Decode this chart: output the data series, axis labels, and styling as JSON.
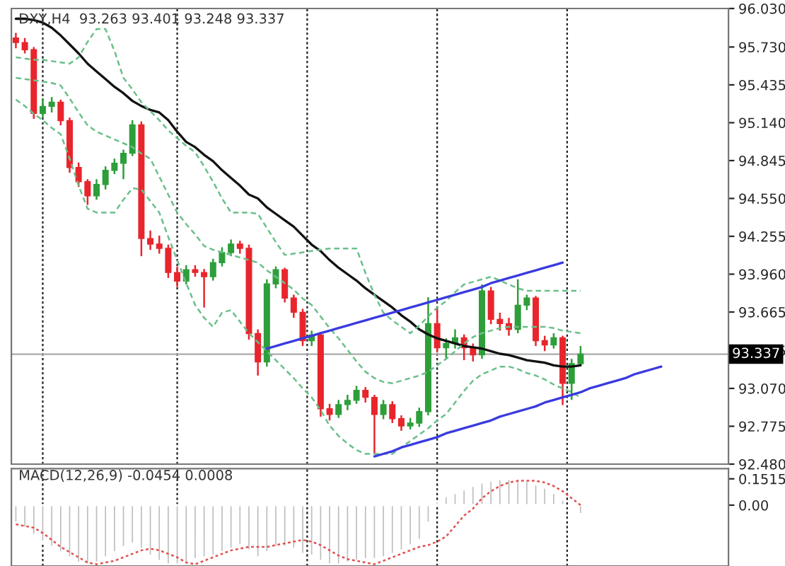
{
  "chart_data": [
    {
      "type": "candlestick",
      "title": "DXY,H4  93.263 93.401 93.248 93.337",
      "categories": [
        null,
        null,
        null,
        null,
        null,
        null,
        null,
        null,
        null,
        null,
        null,
        null,
        null,
        null,
        null,
        null,
        null,
        null,
        null,
        null,
        null,
        null,
        null,
        null,
        null,
        null,
        null,
        null,
        null,
        null,
        null,
        null,
        null,
        null,
        null,
        null,
        null,
        null,
        null,
        null,
        null,
        null,
        null,
        null,
        null,
        null,
        null,
        null,
        null,
        null,
        null,
        null,
        null,
        null,
        null,
        null,
        null,
        null,
        null,
        null,
        null,
        null,
        null,
        null,
        null,
        null,
        null,
        null,
        null,
        null,
        null,
        null,
        null,
        null,
        null,
        null,
        null,
        null,
        null,
        null
      ],
      "ohlc": [
        [
          95.8,
          95.84,
          95.72,
          95.765
        ],
        [
          95.765,
          95.8,
          95.68,
          95.709
        ],
        [
          95.709,
          95.73,
          95.17,
          95.212
        ],
        [
          95.212,
          95.33,
          95.18,
          95.267
        ],
        [
          95.267,
          95.34,
          95.22,
          95.3
        ],
        [
          95.3,
          95.32,
          95.12,
          95.156
        ],
        [
          95.156,
          95.18,
          94.75,
          94.791
        ],
        [
          94.791,
          94.83,
          94.64,
          94.681
        ],
        [
          94.681,
          94.7,
          94.5,
          94.57
        ],
        [
          94.57,
          94.7,
          94.54,
          94.659
        ],
        [
          94.659,
          94.8,
          94.62,
          94.769
        ],
        [
          94.769,
          94.86,
          94.74,
          94.824
        ],
        [
          94.824,
          94.93,
          94.7,
          94.902
        ],
        [
          94.902,
          95.16,
          94.88,
          95.123
        ],
        [
          95.123,
          95.15,
          94.1,
          94.238
        ],
        [
          94.238,
          94.3,
          94.15,
          94.194
        ],
        [
          94.194,
          94.26,
          94.12,
          94.161
        ],
        [
          94.161,
          94.19,
          93.93,
          93.973
        ],
        [
          93.973,
          94.02,
          93.86,
          93.906
        ],
        [
          93.906,
          94.03,
          93.88,
          93.995
        ],
        [
          93.995,
          94.03,
          93.94,
          93.973
        ],
        [
          93.973,
          94.0,
          93.7,
          93.94
        ],
        [
          93.94,
          94.08,
          93.91,
          94.05
        ],
        [
          94.05,
          94.17,
          94.02,
          94.128
        ],
        [
          94.128,
          94.23,
          94.1,
          94.194
        ],
        [
          94.194,
          94.22,
          94.12,
          94.161
        ],
        [
          94.161,
          94.19,
          93.45,
          93.497
        ],
        [
          93.497,
          93.53,
          93.17,
          93.276
        ],
        [
          93.276,
          93.92,
          93.24,
          93.884
        ],
        [
          93.884,
          94.02,
          93.85,
          93.995
        ],
        [
          93.995,
          94.01,
          93.74,
          93.774
        ],
        [
          93.774,
          93.8,
          93.62,
          93.663
        ],
        [
          93.663,
          93.69,
          93.4,
          93.442
        ],
        [
          93.442,
          93.52,
          93.4,
          93.486
        ],
        [
          93.486,
          93.51,
          92.85,
          92.911
        ],
        [
          92.911,
          92.95,
          92.82,
          92.867
        ],
        [
          92.867,
          92.98,
          92.84,
          92.944
        ],
        [
          92.944,
          93.02,
          92.9,
          92.977
        ],
        [
          92.977,
          93.09,
          92.95,
          93.055
        ],
        [
          93.055,
          93.08,
          92.96,
          93.0
        ],
        [
          93.0,
          93.02,
          92.56,
          92.867
        ],
        [
          92.867,
          92.98,
          92.83,
          92.944
        ],
        [
          92.944,
          92.97,
          92.8,
          92.834
        ],
        [
          92.834,
          92.86,
          92.74,
          92.778
        ],
        [
          92.778,
          92.84,
          92.75,
          92.8
        ],
        [
          92.8,
          92.92,
          92.77,
          92.889
        ],
        [
          92.889,
          93.78,
          92.86,
          93.575
        ],
        [
          93.575,
          93.7,
          93.35,
          93.387
        ],
        [
          93.387,
          93.46,
          93.3,
          93.42
        ],
        [
          93.42,
          93.53,
          93.38,
          93.464
        ],
        [
          93.464,
          93.49,
          93.29,
          93.387
        ],
        [
          93.387,
          93.42,
          93.28,
          93.331
        ],
        [
          93.331,
          93.88,
          93.3,
          93.829
        ],
        [
          93.829,
          93.86,
          93.57,
          93.608
        ],
        [
          93.608,
          93.66,
          93.52,
          93.575
        ],
        [
          93.575,
          93.62,
          93.48,
          93.53
        ],
        [
          93.53,
          93.92,
          93.5,
          93.718
        ],
        [
          93.718,
          93.8,
          93.68,
          93.774
        ],
        [
          93.774,
          93.79,
          93.4,
          93.442
        ],
        [
          93.442,
          93.48,
          93.36,
          93.409
        ],
        [
          93.409,
          93.5,
          93.38,
          93.464
        ],
        [
          93.464,
          93.48,
          92.94,
          93.11
        ],
        [
          93.11,
          93.3,
          92.98,
          93.263
        ],
        [
          93.263,
          93.401,
          93.248,
          93.337
        ],
        null,
        null,
        null,
        null,
        null,
        null,
        null,
        null,
        null,
        null,
        null,
        null,
        null,
        null,
        null,
        null
      ],
      "colors": [
        "#e8252c",
        "#e8252c",
        "#e8252c",
        "#2e9e3a",
        "#2e9e3a",
        "#e8252c",
        "#e8252c",
        "#e8252c",
        "#e8252c",
        "#2e9e3a",
        "#2e9e3a",
        "#2e9e3a",
        "#2e9e3a",
        "#2e9e3a",
        "#e8252c",
        "#e8252c",
        "#e8252c",
        "#e8252c",
        "#e8252c",
        "#2e9e3a",
        "#e8252c",
        "#e8252c",
        "#2e9e3a",
        "#2e9e3a",
        "#2e9e3a",
        "#e8252c",
        "#e8252c",
        "#e8252c",
        "#2e9e3a",
        "#2e9e3a",
        "#e8252c",
        "#e8252c",
        "#e8252c",
        "#2e9e3a",
        "#e8252c",
        "#e8252c",
        "#2e9e3a",
        "#2e9e3a",
        "#2e9e3a",
        "#e8252c",
        "#e8252c",
        "#2e9e3a",
        "#e8252c",
        "#e8252c",
        "#2e9e3a",
        "#2e9e3a",
        "#2e9e3a",
        "#e8252c",
        "#2e9e3a",
        "#2e9e3a",
        "#e8252c",
        "#e8252c",
        "#2e9e3a",
        "#e8252c",
        "#e8252c",
        "#e8252c",
        "#2e9e3a",
        "#2e9e3a",
        "#e8252c",
        "#e8252c",
        "#2e9e3a",
        "#e8252c",
        "#2e9e3a",
        "#2e9e3a",
        null,
        null,
        null,
        null,
        null,
        null,
        null,
        null,
        null,
        null,
        null,
        null,
        null,
        null,
        null,
        null
      ],
      "series": [
        {
          "type": "line",
          "color": "#111111",
          "line_style": "solid",
          "values": [
            95.95,
            95.95,
            95.94,
            95.92,
            95.88,
            95.82,
            95.75,
            95.68,
            95.6,
            95.54,
            95.48,
            95.42,
            95.37,
            95.31,
            95.27,
            95.24,
            95.22,
            95.16,
            95.07,
            94.99,
            94.95,
            94.89,
            94.84,
            94.77,
            94.71,
            94.65,
            94.58,
            94.55,
            94.48,
            94.43,
            94.38,
            94.33,
            94.26,
            94.19,
            94.14,
            94.07,
            94.01,
            93.96,
            93.91,
            93.85,
            93.8,
            93.75,
            93.7,
            93.64,
            93.59,
            93.53,
            93.49,
            93.46,
            93.44,
            93.42,
            93.4,
            93.39,
            93.38,
            93.36,
            93.34,
            93.33,
            93.31,
            93.29,
            93.28,
            93.27,
            93.25,
            93.24,
            93.24,
            93.25,
            null,
            null,
            null,
            null,
            null,
            null,
            null,
            null,
            null,
            null,
            null,
            null,
            null,
            null,
            null,
            null
          ]
        },
        {
          "type": "line",
          "color": "#6abf8a",
          "line_style": "dashed",
          "values": [
            95.65,
            95.64,
            95.63,
            95.63,
            95.62,
            95.61,
            95.6,
            95.65,
            95.77,
            95.87,
            95.87,
            95.7,
            95.49,
            95.4,
            95.3,
            95.23,
            95.16,
            95.08,
            95.02,
            94.96,
            94.91,
            94.8,
            94.68,
            94.55,
            94.44,
            94.44,
            94.44,
            94.43,
            94.32,
            94.21,
            94.11,
            94.12,
            94.13,
            94.14,
            94.15,
            94.16,
            94.16,
            94.16,
            94.16,
            93.97,
            93.8,
            93.66,
            93.6,
            93.55,
            93.5,
            93.56,
            93.63,
            93.7,
            93.75,
            93.82,
            93.88,
            93.9,
            93.92,
            93.94,
            93.91,
            93.88,
            93.85,
            93.83,
            93.83,
            93.83,
            93.83,
            93.83,
            93.83,
            93.83,
            null,
            null,
            null,
            null,
            null,
            null,
            null,
            null,
            null,
            null,
            null,
            null,
            null,
            null,
            null,
            null
          ]
        },
        {
          "type": "line",
          "color": "#6abf8a",
          "line_style": "dashed",
          "values": [
            95.49,
            95.48,
            95.47,
            95.46,
            95.45,
            95.43,
            95.33,
            95.22,
            95.12,
            95.07,
            95.04,
            95.01,
            94.98,
            94.95,
            94.9,
            94.86,
            94.72,
            94.58,
            94.44,
            94.35,
            94.27,
            94.18,
            94.15,
            94.13,
            94.11,
            94.09,
            94.07,
            94.05,
            93.99,
            93.94,
            93.89,
            93.84,
            93.77,
            93.72,
            93.63,
            93.54,
            93.46,
            93.37,
            93.28,
            93.2,
            93.15,
            93.12,
            93.11,
            93.13,
            93.15,
            93.17,
            93.2,
            93.25,
            93.3,
            93.36,
            93.42,
            93.47,
            93.5,
            93.52,
            93.54,
            93.55,
            93.55,
            93.55,
            93.55,
            93.55,
            93.54,
            93.52,
            93.51,
            93.5,
            null,
            null,
            null,
            null,
            null,
            null,
            null,
            null,
            null,
            null,
            null,
            null,
            null,
            null,
            null,
            null
          ]
        },
        {
          "type": "line",
          "color": "#6abf8a",
          "line_style": "dashed",
          "values": [
            95.32,
            95.27,
            95.21,
            95.16,
            95.1,
            95.05,
            94.86,
            94.65,
            94.47,
            94.44,
            94.44,
            94.44,
            94.54,
            94.63,
            94.62,
            94.53,
            94.44,
            94.25,
            94.07,
            93.89,
            93.72,
            93.62,
            93.55,
            93.66,
            93.68,
            93.59,
            93.5,
            93.43,
            93.36,
            93.29,
            93.22,
            93.15,
            93.07,
            93.0,
            92.9,
            92.78,
            92.7,
            92.64,
            92.59,
            92.56,
            92.56,
            92.56,
            92.56,
            92.61,
            92.66,
            92.71,
            92.76,
            92.82,
            92.87,
            92.96,
            93.05,
            93.13,
            93.18,
            93.21,
            93.24,
            93.24,
            93.22,
            93.19,
            93.17,
            93.14,
            93.1,
            93.07,
            93.04,
            93.0,
            null,
            null,
            null,
            null,
            null,
            null,
            null,
            null,
            null,
            null,
            null,
            null,
            null,
            null,
            null,
            null
          ]
        },
        {
          "type": "line",
          "color": "#3a3ae0",
          "line_style": "solid",
          "values": [
            null,
            null,
            null,
            null,
            null,
            null,
            null,
            null,
            null,
            null,
            null,
            null,
            null,
            null,
            null,
            null,
            null,
            null,
            null,
            null,
            null,
            null,
            null,
            null,
            null,
            null,
            null,
            null,
            93.38,
            93.4,
            93.42,
            93.44,
            93.46,
            93.48,
            93.5,
            93.52,
            93.54,
            93.56,
            93.58,
            93.6,
            93.62,
            93.64,
            93.66,
            93.68,
            93.7,
            93.72,
            93.74,
            93.76,
            93.78,
            93.8,
            93.82,
            93.84,
            93.86,
            93.89,
            93.91,
            93.93,
            93.95,
            93.97,
            93.99,
            94.01,
            94.03,
            94.05,
            null,
            null,
            null,
            null,
            null,
            null,
            null,
            null,
            null,
            null,
            null,
            null,
            null,
            null,
            null,
            null,
            null,
            null
          ]
        },
        {
          "type": "line",
          "color": "#3a3ae0",
          "line_style": "solid",
          "values": [
            null,
            null,
            null,
            null,
            null,
            null,
            null,
            null,
            null,
            null,
            null,
            null,
            null,
            null,
            null,
            null,
            null,
            null,
            null,
            null,
            null,
            null,
            null,
            null,
            null,
            null,
            null,
            null,
            null,
            null,
            null,
            null,
            null,
            null,
            null,
            null,
            null,
            null,
            null,
            null,
            92.54,
            92.56,
            92.58,
            92.61,
            92.63,
            92.65,
            92.67,
            92.69,
            92.72,
            92.74,
            92.76,
            92.78,
            92.8,
            92.82,
            92.85,
            92.87,
            92.89,
            92.91,
            92.93,
            92.96,
            92.98,
            93.0,
            93.02,
            93.04,
            93.07,
            93.09,
            93.11,
            93.13,
            93.15,
            93.18,
            93.2,
            93.22,
            93.24,
            null,
            null,
            null,
            null,
            null,
            null,
            null
          ]
        }
      ],
      "ylim": [
        92.48,
        96.03
      ],
      "yticks": [
        {
          "value": 92.48,
          "label": "92.480"
        },
        92.775,
        {
          "value": 93.07,
          "label": "93.070"
        },
        93.365,
        93.665,
        {
          "value": 93.96,
          "label": "93.960"
        },
        94.255,
        {
          "value": 94.55,
          "label": "94.550"
        },
        94.845,
        {
          "value": 95.14,
          "label": "95.140"
        },
        95.435,
        {
          "value": 95.73,
          "label": "95.730"
        },
        {
          "value": 96.03,
          "label": "96.030"
        }
      ],
      "ref_lines": [
        {
          "axis": "y",
          "value": 93.337,
          "label": "93.337",
          "color": "#aaaaaa",
          "line_style": "solid"
        }
      ],
      "grid": "x",
      "legend": false,
      "tick_labels": "y"
    },
    {
      "type": "bar",
      "title": "MACD(12,26,9) -0.0454 0.0008",
      "categories": [
        null,
        null,
        null,
        null,
        null,
        null,
        null,
        null,
        null,
        null,
        null,
        null,
        null,
        null,
        null,
        null,
        null,
        null,
        null,
        null,
        null,
        null,
        null,
        null,
        null,
        null,
        null,
        null,
        null,
        null,
        null,
        null,
        null,
        null,
        null,
        null,
        null,
        null,
        null,
        null,
        null,
        null,
        null,
        null,
        null,
        null,
        null,
        null,
        null,
        null,
        null,
        null,
        null,
        null,
        null,
        null,
        null,
        null,
        null,
        null,
        null,
        null,
        null,
        null,
        null,
        null,
        null,
        null,
        null,
        null,
        null,
        null,
        null,
        null,
        null,
        null,
        null,
        null,
        null,
        null
      ],
      "series": [
        {
          "type": "bar",
          "color": "#bdbdbd",
          "values": [
            -0.1,
            -0.13,
            -0.17,
            -0.21,
            -0.24,
            -0.27,
            -0.3,
            -0.33,
            -0.34,
            -0.33,
            -0.3,
            -0.27,
            -0.24,
            -0.22,
            -0.25,
            -0.29,
            -0.32,
            -0.34,
            -0.34,
            -0.33,
            -0.31,
            -0.3,
            -0.29,
            -0.27,
            -0.25,
            -0.23,
            -0.26,
            -0.3,
            -0.27,
            -0.24,
            -0.24,
            -0.25,
            -0.28,
            -0.29,
            -0.32,
            -0.34,
            -0.34,
            -0.33,
            -0.32,
            -0.31,
            -0.31,
            -0.3,
            -0.28,
            -0.26,
            -0.23,
            -0.2,
            -0.1,
            0.02,
            0.05,
            0.07,
            0.09,
            0.11,
            0.13,
            0.14,
            0.15,
            0.15,
            0.15,
            0.14,
            0.12,
            0.1,
            0.07,
            0.03,
            -0.01,
            -0.05,
            null,
            null,
            null,
            null,
            null,
            null,
            null,
            null,
            null,
            null,
            null,
            null,
            null,
            null,
            null,
            null
          ]
        },
        {
          "type": "line",
          "color": "#e05050",
          "line_style": "dotted",
          "values": [
            -0.11,
            -0.12,
            -0.13,
            -0.16,
            -0.2,
            -0.24,
            -0.27,
            -0.3,
            -0.33,
            -0.34,
            -0.33,
            -0.32,
            -0.3,
            -0.28,
            -0.26,
            -0.25,
            -0.26,
            -0.28,
            -0.3,
            -0.33,
            -0.34,
            -0.32,
            -0.3,
            -0.28,
            -0.26,
            -0.25,
            -0.24,
            -0.24,
            -0.24,
            -0.23,
            -0.22,
            -0.21,
            -0.2,
            -0.21,
            -0.23,
            -0.26,
            -0.29,
            -0.31,
            -0.32,
            -0.33,
            -0.34,
            -0.32,
            -0.3,
            -0.28,
            -0.26,
            -0.24,
            -0.23,
            -0.21,
            -0.18,
            -0.12,
            -0.06,
            -0.02,
            0.04,
            0.08,
            0.11,
            0.13,
            0.14,
            0.14,
            0.14,
            0.13,
            0.11,
            0.08,
            0.04,
            0.0,
            null,
            null,
            null,
            null,
            null,
            null,
            null,
            null,
            null,
            null,
            null,
            null,
            null,
            null,
            null,
            null
          ]
        }
      ],
      "ylim": [
        -0.35,
        0.21
      ],
      "yticks": [
        0.1515,
        {
          "value": 0,
          "label": "0.00"
        }
      ],
      "grid": "x",
      "legend": false,
      "tick_labels": "y"
    }
  ]
}
